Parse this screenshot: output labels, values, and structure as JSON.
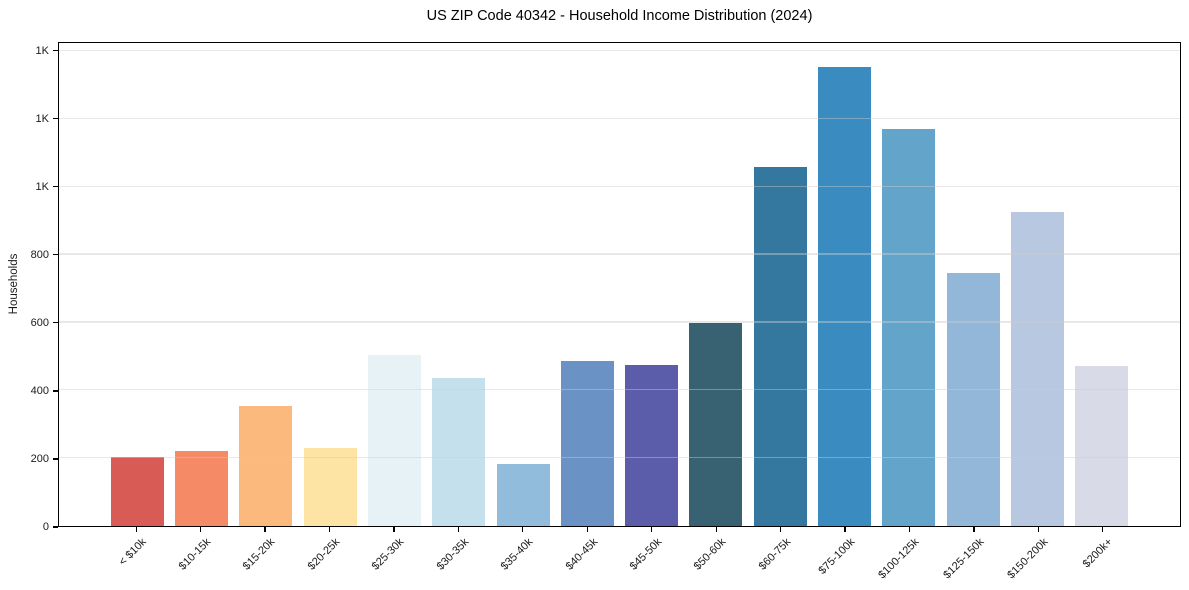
{
  "figure": {
    "background_color": "#ffffff",
    "axis_color": "#000000",
    "gridline_color": "#e9e9e9",
    "text_color": "#1a1a1a"
  },
  "chart_data": {
    "type": "bar",
    "title": "US ZIP Code 40342 - Household Income Distribution (2024)",
    "xlabel": "",
    "ylabel": "Households",
    "ylim": [
      0,
      1425
    ],
    "grid": "horizontal gridlines, drawn light over bars",
    "legend": "none",
    "categories": [
      "< $10k",
      "$10-15k",
      "$15-20k",
      "$20-25k",
      "$25-30k",
      "$30-35k",
      "$35-40k",
      "$40-45k",
      "$45-50k",
      "$50-60k",
      "$60-75k",
      "$75-100k",
      "$100-125k",
      "$125-150k",
      "$150-200k",
      "$200k+"
    ],
    "values": [
      205,
      220,
      355,
      230,
      505,
      438,
      184,
      488,
      474,
      600,
      1060,
      1353,
      1170,
      745,
      925,
      473
    ],
    "bar_colors": [
      "#d85c55",
      "#f58a67",
      "#fbb97d",
      "#fde3a4",
      "#e7f2f7",
      "#c3e0ec",
      "#92bcdb",
      "#6b92c4",
      "#5c5daa",
      "#386172",
      "#34789f",
      "#3a8cc0",
      "#63a4ca",
      "#93b7d8",
      "#b8c8e1",
      "#d8dae8"
    ],
    "yticks": [
      {
        "value": 0,
        "label": "0"
      },
      {
        "value": 200,
        "label": "200"
      },
      {
        "value": 400,
        "label": "400"
      },
      {
        "value": 600,
        "label": "600"
      },
      {
        "value": 800,
        "label": "800"
      },
      {
        "value": 1000,
        "label": "1K"
      },
      {
        "value": 1200,
        "label": "1K"
      },
      {
        "value": 1400,
        "label": "1K"
      }
    ]
  }
}
